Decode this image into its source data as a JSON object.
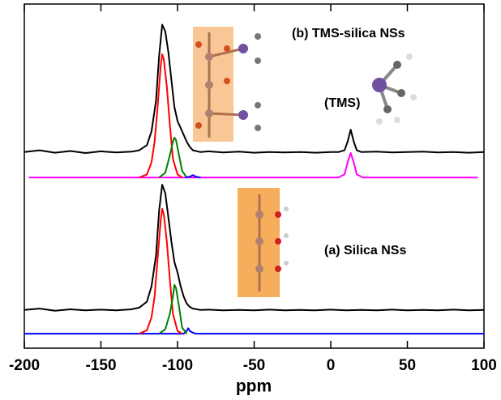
{
  "chart_data": {
    "type": "line",
    "xlabel": "ppm",
    "xlim": [
      -200,
      100
    ],
    "ylim": [
      0,
      100
    ],
    "xticks": [
      -200,
      -150,
      -100,
      -50,
      0,
      50,
      100
    ],
    "annotations": [
      "(b) TMS-silica NSs",
      "(TMS)",
      "(a) Silica NSs"
    ],
    "series": [
      {
        "color": "#000000",
        "x": [
          -200,
          -190,
          -180,
          -170,
          -160,
          -150,
          -140,
          -130,
          -125,
          -120,
          -117,
          -114,
          -112,
          -110,
          -108,
          -106,
          -104,
          -102,
          -100,
          -98,
          -96,
          -94,
          -92,
          -90,
          -85,
          -80,
          -70,
          -60,
          -50,
          -40,
          -30,
          -20,
          -10,
          0,
          5,
          9,
          11,
          13,
          15,
          17,
          20,
          30,
          40,
          50,
          60,
          70,
          80,
          90,
          100
        ],
        "values": [
          57,
          57.5,
          56.8,
          57.3,
          56.7,
          57.2,
          56.9,
          57.1,
          57.5,
          59,
          63,
          72,
          85,
          94,
          92,
          86,
          78,
          70,
          66,
          64,
          62,
          60,
          58.5,
          57.5,
          57,
          57.2,
          56.9,
          57.1,
          56.8,
          57,
          56.9,
          57,
          56.8,
          57,
          57,
          57.5,
          60,
          63.5,
          60,
          57.5,
          57,
          57.1,
          56.9,
          57,
          57.1,
          56.9,
          57,
          56.8,
          57
        ]
      },
      {
        "color": "#ff00ff",
        "x": [
          -197,
          5,
          9,
          11,
          13,
          15,
          17,
          21,
          96
        ],
        "values": [
          49.6,
          49.6,
          50.5,
          54,
          56.7,
          54,
          50.5,
          49.6,
          49.6
        ]
      },
      {
        "color": "#ff0000",
        "x": [
          -125,
          -120,
          -117,
          -115,
          -113,
          -111,
          -110,
          -109,
          -107,
          -105,
          -103,
          -100,
          -97
        ],
        "values": [
          49.6,
          50.5,
          54,
          60,
          70,
          82,
          85.4,
          84,
          76,
          65,
          55,
          50.5,
          49.6
        ]
      },
      {
        "color": "#008000",
        "x": [
          -112,
          -108,
          -105,
          -103,
          -102,
          -101,
          -99,
          -97,
          -94
        ],
        "values": [
          49.6,
          51,
          56,
          60,
          61.2,
          60.5,
          56,
          51.5,
          49.6
        ]
      },
      {
        "color": "#0000ff",
        "x": [
          -95,
          -92,
          -90,
          -88,
          -85
        ],
        "values": [
          49.6,
          49.8,
          50.3,
          49.8,
          49.6
        ]
      },
      {
        "color": "#000000",
        "x": [
          -200,
          -190,
          -180,
          -170,
          -160,
          -150,
          -140,
          -130,
          -125,
          -120,
          -117,
          -114,
          -112,
          -110,
          -108,
          -106,
          -104,
          -102,
          -100,
          -98,
          -96,
          -94,
          -92,
          -90,
          -85,
          -80,
          -70,
          -60,
          -50,
          -40,
          -30,
          -20,
          -10,
          0,
          10,
          20,
          30,
          40,
          50,
          60,
          70,
          80,
          90,
          100
        ],
        "values": [
          11.1,
          11.5,
          10.9,
          11.3,
          11,
          11.2,
          11,
          11.3,
          11.8,
          13.5,
          18,
          27,
          40,
          47.5,
          45,
          38,
          31,
          25,
          22,
          18,
          15,
          13,
          12,
          11.5,
          11.1,
          11.2,
          11,
          11.1,
          11,
          11.2,
          11,
          11.1,
          11,
          11.2,
          11,
          11.1,
          11,
          11.2,
          11,
          11.1,
          11,
          11.2,
          11,
          11.1
        ]
      },
      {
        "color": "#0000ff",
        "x": [
          -200,
          -96,
          -94,
          -93,
          -92,
          -90,
          -88,
          100
        ],
        "values": [
          4.2,
          4.2,
          5,
          5.8,
          5,
          4.5,
          4.2,
          4.2
        ]
      },
      {
        "color": "#ff0000",
        "x": [
          -125,
          -120,
          -117,
          -115,
          -113,
          -111,
          -110,
          -109,
          -107,
          -105,
          -103,
          -100,
          -97
        ],
        "values": [
          4.2,
          5.2,
          9,
          15,
          26,
          37,
          40.5,
          39,
          31,
          20,
          10,
          5,
          4.2
        ]
      },
      {
        "color": "#008000",
        "x": [
          -112,
          -108,
          -105,
          -103,
          -102,
          -101,
          -99,
          -97,
          -94
        ],
        "values": [
          4.2,
          5.5,
          10,
          15,
          18.4,
          17.5,
          12,
          6,
          4.2
        ]
      }
    ]
  }
}
